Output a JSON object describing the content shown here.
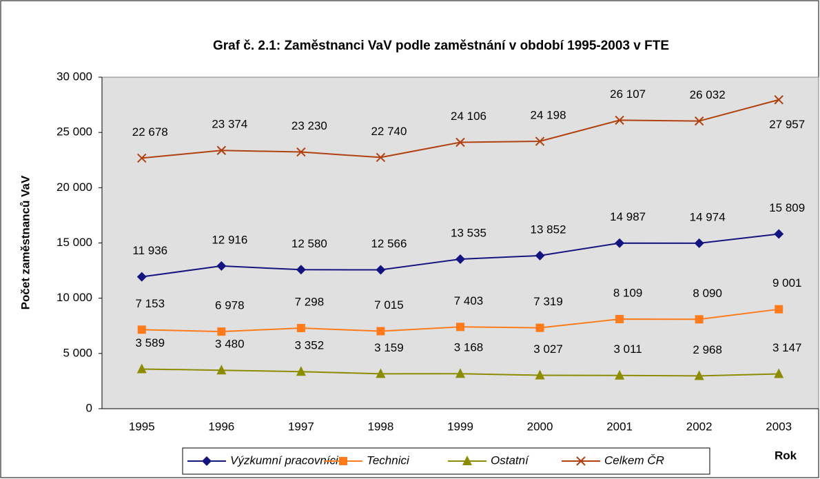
{
  "chart_data": {
    "type": "line",
    "title": "Graf č. 2.1: Zaměstnanci VaV podle zaměstnání v období 1995-2003 v FTE",
    "y_label": "Počet zaměstnanců VaV",
    "x_label": "Rok",
    "categories": [
      "1995",
      "1996",
      "1997",
      "1998",
      "1999",
      "2000",
      "2001",
      "2002",
      "2003"
    ],
    "ylim": [
      0,
      30000
    ],
    "yticks": [
      {
        "value": 0,
        "label": "0"
      },
      {
        "value": 5000,
        "label": "5 000"
      },
      {
        "value": 10000,
        "label": "10 000"
      },
      {
        "value": 15000,
        "label": "15 000"
      },
      {
        "value": 20000,
        "label": "20 000"
      },
      {
        "value": 25000,
        "label": "25 000"
      },
      {
        "value": 30000,
        "label": "30 000"
      }
    ],
    "series": [
      {
        "name": "Výzkumní pracovníci",
        "color": "#141480",
        "marker": "diamond",
        "values": [
          11936,
          12916,
          12580,
          12566,
          13535,
          13852,
          14987,
          14974,
          15809
        ],
        "value_labels": [
          "11 936",
          "12 916",
          "12 580",
          "12 566",
          "13 535",
          "13 852",
          "14 987",
          "14 974",
          "15 809"
        ]
      },
      {
        "name": "Technici",
        "color": "#ff7a1a",
        "marker": "square",
        "values": [
          7153,
          6978,
          7298,
          7015,
          7403,
          7319,
          8109,
          8090,
          9001
        ],
        "value_labels": [
          "7 153",
          "6 978",
          "7 298",
          "7 015",
          "7 403",
          "7 319",
          "8 109",
          "8 090",
          "9 001"
        ]
      },
      {
        "name": "Ostatní",
        "color": "#8c8c00",
        "marker": "triangle",
        "values": [
          3589,
          3480,
          3352,
          3159,
          3168,
          3027,
          3011,
          2968,
          3147
        ],
        "value_labels": [
          "3 589",
          "3 480",
          "3 352",
          "3 159",
          "3 168",
          "3 027",
          "3 011",
          "2 968",
          "3 147"
        ]
      },
      {
        "name": "Celkem ČR",
        "color": "#b0400e",
        "marker": "x",
        "values": [
          22678,
          23374,
          23230,
          22740,
          24106,
          24198,
          26107,
          26032,
          27957
        ],
        "value_labels": [
          "22 678",
          "23 374",
          "23 230",
          "22 740",
          "24 106",
          "24 198",
          "26 107",
          "26 032",
          "27 957"
        ]
      }
    ]
  }
}
